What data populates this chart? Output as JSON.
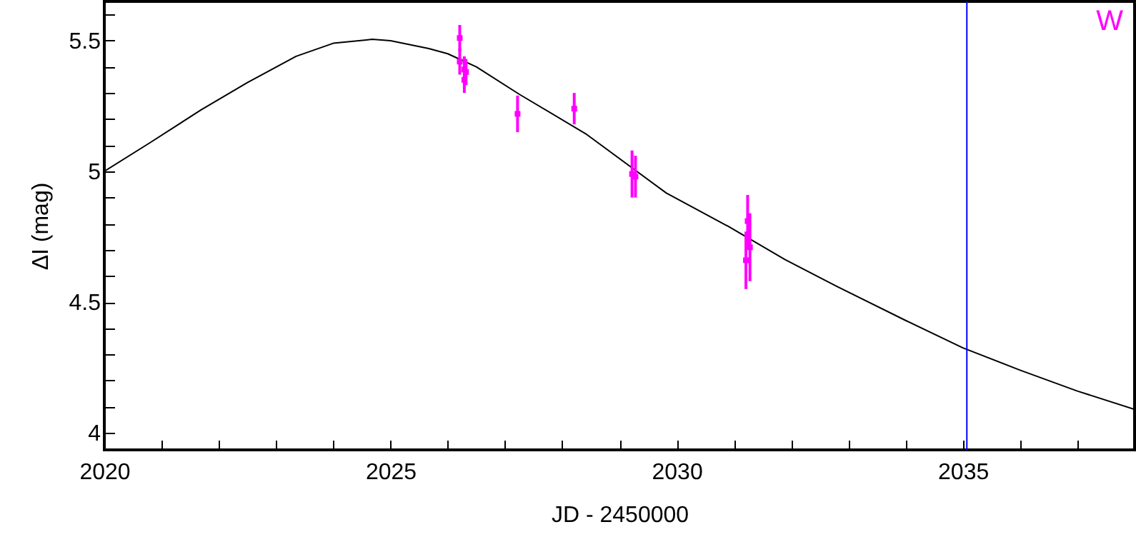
{
  "chart_data": {
    "type": "line",
    "xlabel": "JD - 2450000",
    "ylabel": "ΔI (mag)",
    "annotations": [
      "W"
    ],
    "xlim": [
      2020,
      2038
    ],
    "ylim": [
      3.935,
      5.65
    ],
    "xticks": [
      2020,
      {
        "value": 2021,
        "label": null
      },
      {
        "value": 2022,
        "label": null
      },
      {
        "value": 2023,
        "label": null
      },
      {
        "value": 2024,
        "label": null
      },
      2025,
      {
        "value": 2026,
        "label": null
      },
      {
        "value": 2027,
        "label": null
      },
      {
        "value": 2028,
        "label": null
      },
      {
        "value": 2029,
        "label": null
      },
      2030,
      {
        "value": 2031,
        "label": null
      },
      {
        "value": 2032,
        "label": null
      },
      {
        "value": 2033,
        "label": null
      },
      {
        "value": 2034,
        "label": null
      },
      2035,
      {
        "value": 2036,
        "label": null
      },
      {
        "value": 2037,
        "label": null
      }
    ],
    "yticks": [
      4,
      {
        "value": 4.1,
        "label": null
      },
      {
        "value": 4.2,
        "label": null
      },
      {
        "value": 4.3,
        "label": null
      },
      {
        "value": 4.4,
        "label": null
      },
      4.5,
      {
        "value": 4.6,
        "label": null
      },
      {
        "value": 4.7,
        "label": null
      },
      {
        "value": 4.8,
        "label": null
      },
      {
        "value": 4.9,
        "label": null
      },
      5,
      {
        "value": 5.1,
        "label": null
      },
      {
        "value": 5.2,
        "label": null
      },
      {
        "value": 5.3,
        "label": null
      },
      {
        "value": 5.4,
        "label": null
      },
      5.5,
      {
        "value": 5.6,
        "label": null
      }
    ],
    "series": [
      {
        "type": "line",
        "marker": "none",
        "color": "#000000",
        "x": [
          2020,
          2020.8,
          2021.69,
          2022.5,
          2023.35,
          2024,
          2024.68,
          2025,
          2025.67,
          2026,
          2026.5,
          2027.25,
          2028.41,
          2029.82,
          2030.9,
          2031.89,
          2032.8,
          2034,
          2035,
          2036,
          2037,
          2038
        ],
        "values": [
          5.0,
          5.11,
          5.235,
          5.34,
          5.44,
          5.49,
          5.505,
          5.5,
          5.47,
          5.45,
          5.4,
          5.295,
          5.144,
          4.917,
          4.79,
          4.663,
          4.56,
          4.43,
          4.325,
          4.24,
          4.16,
          4.09
        ]
      },
      {
        "type": "scatter",
        "marker": "square",
        "color": "#ff00ff",
        "x": [
          2026.21,
          2026.21,
          2026.29,
          2026.32,
          2026.29,
          2027.22,
          2028.21,
          2029.22,
          2029.28,
          2031.21,
          2031.24,
          2031.28
        ],
        "values": [
          5.51,
          5.42,
          5.39,
          5.38,
          5.35,
          5.22,
          5.24,
          4.99,
          4.98,
          4.66,
          4.81,
          4.71
        ],
        "errors": [
          0.05,
          0.05,
          0.05,
          0.05,
          0.05,
          0.07,
          0.06,
          0.09,
          0.08,
          0.11,
          0.1,
          0.13
        ]
      }
    ],
    "ref_lines": [
      {
        "axis": "x",
        "value": 2035.07,
        "color": "#0000ff"
      }
    ]
  }
}
